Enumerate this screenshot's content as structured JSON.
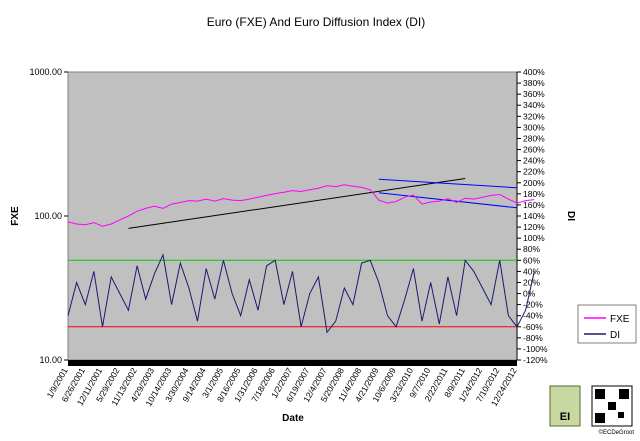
{
  "chart_data": {
    "type": "line",
    "title": "Euro (FXE) And Euro Diffusion Index (DI)",
    "xlabel": "Date",
    "ylabel_left": "FXE",
    "ylabel_right": "DI",
    "left_axis": {
      "scale": "log",
      "range": [
        10,
        1000
      ],
      "ticks": [
        "10.00",
        "100.00",
        "1000.00"
      ]
    },
    "right_axis": {
      "scale": "linear",
      "range": [
        -120,
        400
      ],
      "ticks": [
        "-120%",
        "-100%",
        "-80%",
        "-60%",
        "-40%",
        "-20%",
        "0%",
        "20%",
        "40%",
        "60%",
        "80%",
        "100%",
        "120%",
        "140%",
        "160%",
        "180%",
        "200%",
        "220%",
        "240%",
        "260%",
        "280%",
        "300%",
        "320%",
        "340%",
        "360%",
        "380%",
        "400%"
      ]
    },
    "x_tick_labels": [
      "1/9/2001",
      "6/26/2001",
      "12/11/2001",
      "5/29/2002",
      "11/13/2002",
      "4/29/2003",
      "10/14/2003",
      "3/30/2004",
      "9/14/2004",
      "3/1/2005",
      "8/16/2005",
      "1/31/2006",
      "7/18/2006",
      "1/2/2007",
      "6/19/2007",
      "12/4/2007",
      "5/20/2008",
      "11/4/2008",
      "4/21/2009",
      "10/6/2009",
      "3/23/2010",
      "9/7/2010",
      "2/22/2011",
      "8/9/2011",
      "1/24/2012",
      "7/10/2012",
      "12/24/2012"
    ],
    "legend_position": "right",
    "plot_background": "#c0c0c0",
    "series": [
      {
        "name": "FXE",
        "color": "#ff00ff",
        "axis": "left",
        "x": [
          0.0,
          0.5,
          1.0,
          1.5,
          2.0,
          2.5,
          3.0,
          3.5,
          4.0,
          4.5,
          5.0,
          5.5,
          6.0,
          6.5,
          7.0,
          7.5,
          8.0,
          8.5,
          9.0,
          9.5,
          10.0,
          10.5,
          11.0,
          11.5,
          12.0,
          12.5,
          13.0,
          13.5,
          14.0,
          14.5,
          15.0,
          15.5,
          16.0,
          16.5,
          17.0,
          17.5,
          18.0,
          18.5,
          19.0,
          19.5,
          20.0,
          20.5,
          21.0,
          21.5,
          22.0,
          22.5,
          23.0,
          23.5,
          24.0,
          24.5,
          25.0,
          25.5,
          26.0,
          26.5,
          27.0
        ],
        "y": [
          91,
          88,
          87,
          90,
          85,
          88,
          94,
          100,
          108,
          113,
          117,
          113,
          121,
          124,
          128,
          127,
          131,
          127,
          132,
          129,
          128,
          131,
          135,
          139,
          143,
          146,
          150,
          148,
          152,
          156,
          162,
          160,
          165,
          161,
          158,
          152,
          129,
          123,
          126,
          135,
          140,
          121,
          125,
          127,
          132,
          124,
          133,
          131,
          135,
          139,
          141,
          131,
          123,
          128,
          130
        ]
      },
      {
        "name": "DI",
        "color": "#1a1a6e",
        "axis": "right",
        "x": [
          0.0,
          0.5,
          1.0,
          1.5,
          2.0,
          2.5,
          3.0,
          3.5,
          4.0,
          4.5,
          5.0,
          5.5,
          6.0,
          6.5,
          7.0,
          7.5,
          8.0,
          8.5,
          9.0,
          9.5,
          10.0,
          10.5,
          11.0,
          11.5,
          12.0,
          12.5,
          13.0,
          13.5,
          14.0,
          14.5,
          15.0,
          15.5,
          16.0,
          16.5,
          17.0,
          17.5,
          18.0,
          18.5,
          19.0,
          19.5,
          20.0,
          20.5,
          21.0,
          21.5,
          22.0,
          22.5,
          23.0,
          23.5,
          24.0,
          24.5,
          25.0,
          25.5,
          26.0,
          26.5,
          27.0
        ],
        "y": [
          -40,
          20,
          -20,
          40,
          -60,
          30,
          0,
          -30,
          50,
          -10,
          35,
          70,
          -20,
          55,
          10,
          -50,
          45,
          -10,
          60,
          0,
          -40,
          25,
          -30,
          50,
          60,
          -20,
          40,
          -60,
          0,
          30,
          -70,
          -50,
          10,
          -20,
          55,
          60,
          20,
          -40,
          -60,
          -10,
          45,
          -50,
          20,
          -55,
          30,
          -40,
          60,
          40,
          10,
          -20,
          60,
          -40,
          -60,
          -30,
          40
        ]
      }
    ],
    "reference_lines": [
      {
        "value": 60,
        "axis": "right",
        "color": "#00cc00"
      },
      {
        "value": -60,
        "axis": "right",
        "color": "#ff0000"
      }
    ],
    "trendline": {
      "from": [
        3.5,
        82
      ],
      "to": [
        23.0,
        182
      ],
      "axis": "left",
      "color": "#000000"
    },
    "channel": {
      "upper": {
        "from": [
          18.0,
          180
        ],
        "to": [
          28.0,
          157
        ],
        "color": "#0000ff"
      },
      "lower": {
        "from": [
          18.0,
          145
        ],
        "to": [
          28.0,
          114
        ],
        "color": "#0000ff"
      }
    }
  },
  "badge": {
    "credit": "©ECDeGroot",
    "logo_text": "EI"
  }
}
